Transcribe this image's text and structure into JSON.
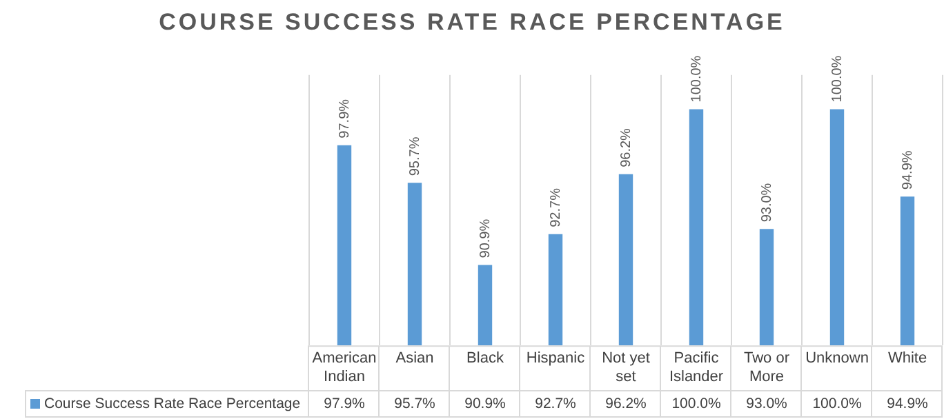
{
  "chart_data": {
    "type": "bar",
    "title": "COURSE SUCCESS RATE RACE PERCENTAGE",
    "categories": [
      "American Indian",
      "Asian",
      "Black",
      "Hispanic",
      "Not yet set",
      "Pacific Islander",
      "Two or More",
      "Unknown",
      "White"
    ],
    "series": [
      {
        "name": "Course Success Rate Race Percentage",
        "color": "#5b9bd5",
        "values": [
          97.9,
          95.7,
          90.9,
          92.7,
          96.2,
          100.0,
          93.0,
          100.0,
          94.9
        ],
        "value_labels": [
          "97.9%",
          "95.7%",
          "90.9%",
          "92.7%",
          "96.2%",
          "100.0%",
          "93.0%",
          "100.0%",
          "94.9%"
        ]
      }
    ],
    "ylim": [
      86.2,
      102
    ],
    "tick_labels": "x",
    "grid": "x",
    "legend": "bottom"
  }
}
